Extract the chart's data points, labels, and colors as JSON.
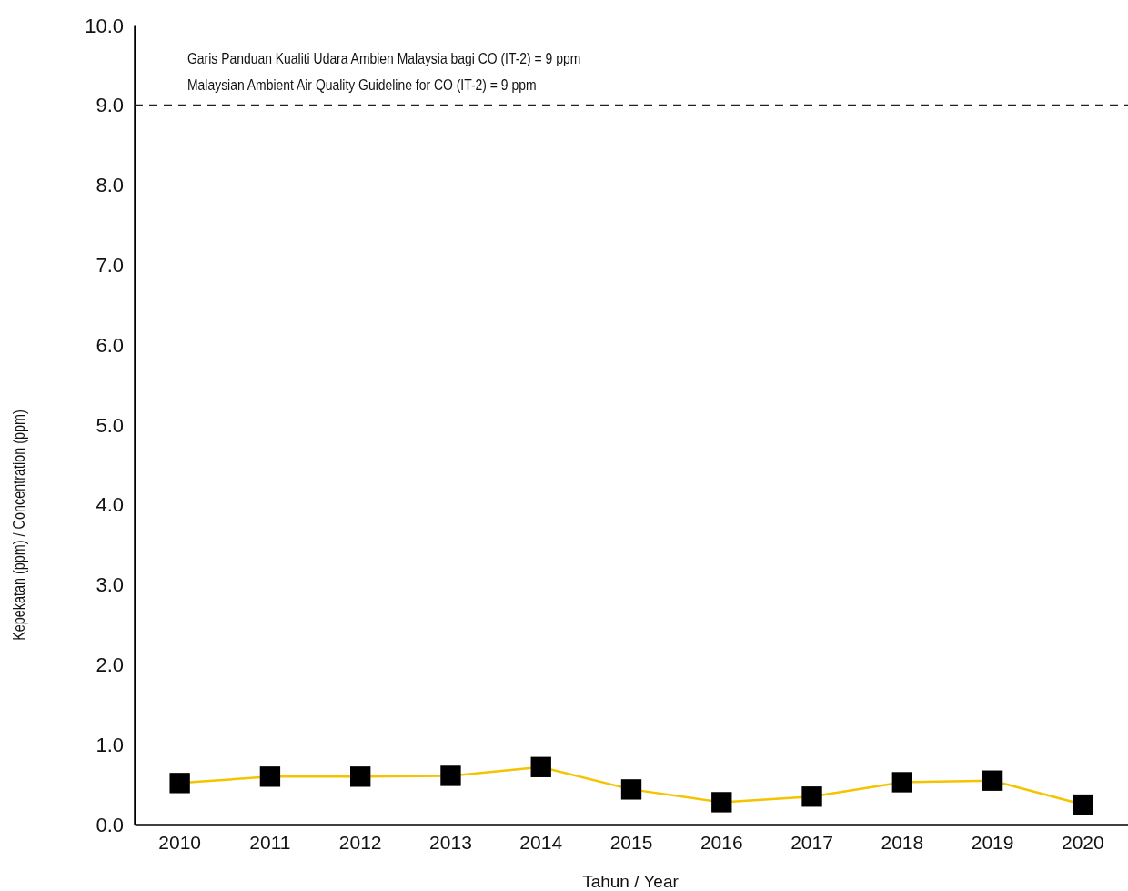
{
  "chart_data": {
    "type": "line",
    "xlabel": "Tahun / Year",
    "ylabel": "Kepekatan (ppm) / Concentration (ppm)",
    "categories": [
      "2010",
      "2011",
      "2012",
      "2013",
      "2014",
      "2015",
      "2016",
      "2017",
      "2018",
      "2019",
      "2020"
    ],
    "series": [
      {
        "color": "#f5c400",
        "values": [
          0.52,
          0.6,
          0.6,
          0.61,
          0.72,
          0.44,
          0.28,
          0.35,
          0.53,
          0.55,
          0.25
        ]
      }
    ],
    "ylim": [
      0,
      10
    ],
    "yticks": [
      {
        "value": 0,
        "label": "0.0"
      },
      {
        "value": 1,
        "label": "1.0"
      },
      {
        "value": 2,
        "label": "2.0"
      },
      {
        "value": 3,
        "label": "3.0"
      },
      {
        "value": 4,
        "label": "4.0"
      },
      {
        "value": 5,
        "label": "5.0"
      },
      {
        "value": 6,
        "label": "6.0"
      },
      {
        "value": 7,
        "label": "7.0"
      },
      {
        "value": 8,
        "label": "8.0"
      },
      {
        "value": 9,
        "label": "9.0"
      },
      {
        "value": 10,
        "label": "10.0"
      }
    ],
    "ref_lines": [
      {
        "axis": "y",
        "value": 9,
        "color": "#222222",
        "line_style": "dashed"
      }
    ],
    "annotations": [
      "Garis Panduan Kualiti Udara Ambien Malaysia bagi CO (IT-2) = 9 ppm",
      "Malaysian Ambient Air Quality Guideline for CO (IT-2) = 9 ppm"
    ],
    "marker": "square",
    "line_style": "solid",
    "grid": false
  }
}
